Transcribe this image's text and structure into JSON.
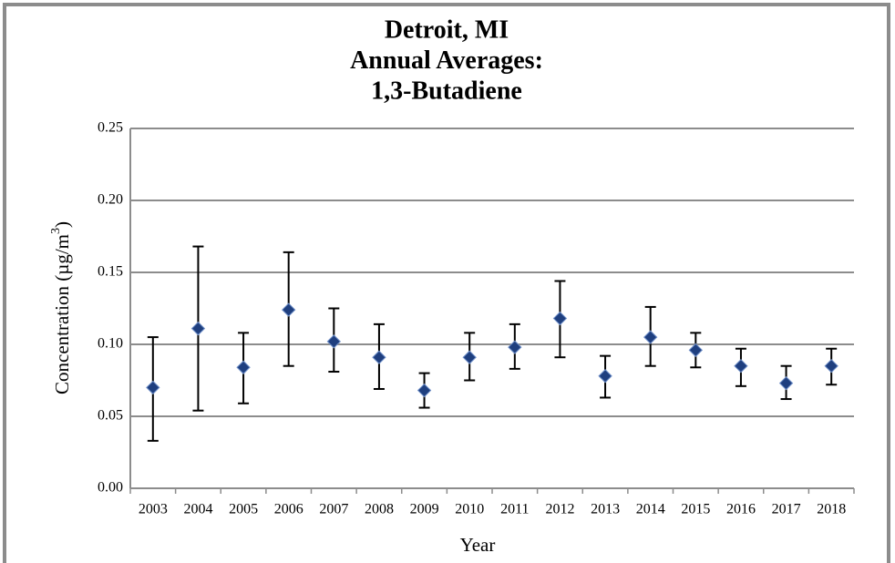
{
  "chart_data": {
    "type": "scatter",
    "title": [
      "Detroit, MI",
      "Annual Averages:",
      "1,3-Butadiene"
    ],
    "x_label": "Year",
    "y_label": {
      "text": "Concentration (µg/m",
      "superscript": "3",
      "suffix": ")"
    },
    "categories": [
      "2003",
      "2004",
      "2005",
      "2006",
      "2007",
      "2008",
      "2009",
      "2010",
      "2011",
      "2012",
      "2013",
      "2014",
      "2015",
      "2016",
      "2017",
      "2018"
    ],
    "values": [
      0.07,
      0.111,
      0.084,
      0.124,
      0.102,
      0.091,
      0.068,
      0.091,
      0.098,
      0.118,
      0.078,
      0.105,
      0.096,
      0.085,
      0.073,
      0.085
    ],
    "lower": [
      0.033,
      0.054,
      0.059,
      0.085,
      0.081,
      0.069,
      0.056,
      0.075,
      0.083,
      0.091,
      0.063,
      0.085,
      0.084,
      0.071,
      0.062,
      0.072
    ],
    "upper": [
      0.105,
      0.168,
      0.108,
      0.164,
      0.125,
      0.114,
      0.08,
      0.108,
      0.114,
      0.144,
      0.092,
      0.126,
      0.108,
      0.097,
      0.085,
      0.097
    ],
    "color": "#1f3f7f",
    "ylim": [
      0,
      0.25
    ],
    "yticks": [
      {
        "value": 0,
        "label": "0.00"
      },
      {
        "value": 0.05,
        "label": "0.05"
      },
      {
        "value": 0.1,
        "label": "0.10"
      },
      {
        "value": 0.15,
        "label": "0.15"
      },
      {
        "value": 0.2,
        "label": "0.20"
      },
      {
        "value": 0.25,
        "label": "0.25"
      }
    ],
    "grid": true
  }
}
